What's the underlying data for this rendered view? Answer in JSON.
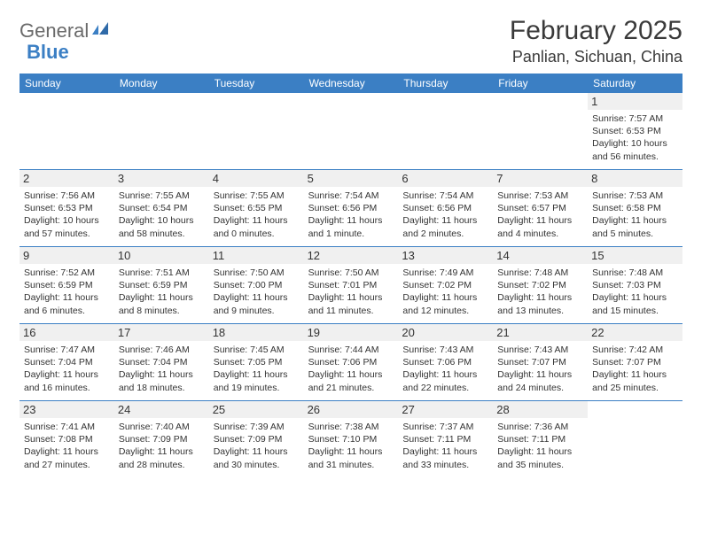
{
  "brand": {
    "name_part1": "General",
    "name_part2": "Blue"
  },
  "header": {
    "month_title": "February 2025",
    "location": "Panlian, Sichuan, China"
  },
  "colors": {
    "accent": "#3b7fc4",
    "row_alt": "#f0f0f0",
    "text": "#333333",
    "logo_gray": "#6a6a6a"
  },
  "calendar": {
    "dow": [
      "Sunday",
      "Monday",
      "Tuesday",
      "Wednesday",
      "Thursday",
      "Friday",
      "Saturday"
    ],
    "weeks": [
      [
        null,
        null,
        null,
        null,
        null,
        null,
        {
          "d": "1",
          "sunrise": "Sunrise: 7:57 AM",
          "sunset": "Sunset: 6:53 PM",
          "daylight": "Daylight: 10 hours and 56 minutes."
        }
      ],
      [
        {
          "d": "2",
          "sunrise": "Sunrise: 7:56 AM",
          "sunset": "Sunset: 6:53 PM",
          "daylight": "Daylight: 10 hours and 57 minutes."
        },
        {
          "d": "3",
          "sunrise": "Sunrise: 7:55 AM",
          "sunset": "Sunset: 6:54 PM",
          "daylight": "Daylight: 10 hours and 58 minutes."
        },
        {
          "d": "4",
          "sunrise": "Sunrise: 7:55 AM",
          "sunset": "Sunset: 6:55 PM",
          "daylight": "Daylight: 11 hours and 0 minutes."
        },
        {
          "d": "5",
          "sunrise": "Sunrise: 7:54 AM",
          "sunset": "Sunset: 6:56 PM",
          "daylight": "Daylight: 11 hours and 1 minute."
        },
        {
          "d": "6",
          "sunrise": "Sunrise: 7:54 AM",
          "sunset": "Sunset: 6:56 PM",
          "daylight": "Daylight: 11 hours and 2 minutes."
        },
        {
          "d": "7",
          "sunrise": "Sunrise: 7:53 AM",
          "sunset": "Sunset: 6:57 PM",
          "daylight": "Daylight: 11 hours and 4 minutes."
        },
        {
          "d": "8",
          "sunrise": "Sunrise: 7:53 AM",
          "sunset": "Sunset: 6:58 PM",
          "daylight": "Daylight: 11 hours and 5 minutes."
        }
      ],
      [
        {
          "d": "9",
          "sunrise": "Sunrise: 7:52 AM",
          "sunset": "Sunset: 6:59 PM",
          "daylight": "Daylight: 11 hours and 6 minutes."
        },
        {
          "d": "10",
          "sunrise": "Sunrise: 7:51 AM",
          "sunset": "Sunset: 6:59 PM",
          "daylight": "Daylight: 11 hours and 8 minutes."
        },
        {
          "d": "11",
          "sunrise": "Sunrise: 7:50 AM",
          "sunset": "Sunset: 7:00 PM",
          "daylight": "Daylight: 11 hours and 9 minutes."
        },
        {
          "d": "12",
          "sunrise": "Sunrise: 7:50 AM",
          "sunset": "Sunset: 7:01 PM",
          "daylight": "Daylight: 11 hours and 11 minutes."
        },
        {
          "d": "13",
          "sunrise": "Sunrise: 7:49 AM",
          "sunset": "Sunset: 7:02 PM",
          "daylight": "Daylight: 11 hours and 12 minutes."
        },
        {
          "d": "14",
          "sunrise": "Sunrise: 7:48 AM",
          "sunset": "Sunset: 7:02 PM",
          "daylight": "Daylight: 11 hours and 13 minutes."
        },
        {
          "d": "15",
          "sunrise": "Sunrise: 7:48 AM",
          "sunset": "Sunset: 7:03 PM",
          "daylight": "Daylight: 11 hours and 15 minutes."
        }
      ],
      [
        {
          "d": "16",
          "sunrise": "Sunrise: 7:47 AM",
          "sunset": "Sunset: 7:04 PM",
          "daylight": "Daylight: 11 hours and 16 minutes."
        },
        {
          "d": "17",
          "sunrise": "Sunrise: 7:46 AM",
          "sunset": "Sunset: 7:04 PM",
          "daylight": "Daylight: 11 hours and 18 minutes."
        },
        {
          "d": "18",
          "sunrise": "Sunrise: 7:45 AM",
          "sunset": "Sunset: 7:05 PM",
          "daylight": "Daylight: 11 hours and 19 minutes."
        },
        {
          "d": "19",
          "sunrise": "Sunrise: 7:44 AM",
          "sunset": "Sunset: 7:06 PM",
          "daylight": "Daylight: 11 hours and 21 minutes."
        },
        {
          "d": "20",
          "sunrise": "Sunrise: 7:43 AM",
          "sunset": "Sunset: 7:06 PM",
          "daylight": "Daylight: 11 hours and 22 minutes."
        },
        {
          "d": "21",
          "sunrise": "Sunrise: 7:43 AM",
          "sunset": "Sunset: 7:07 PM",
          "daylight": "Daylight: 11 hours and 24 minutes."
        },
        {
          "d": "22",
          "sunrise": "Sunrise: 7:42 AM",
          "sunset": "Sunset: 7:07 PM",
          "daylight": "Daylight: 11 hours and 25 minutes."
        }
      ],
      [
        {
          "d": "23",
          "sunrise": "Sunrise: 7:41 AM",
          "sunset": "Sunset: 7:08 PM",
          "daylight": "Daylight: 11 hours and 27 minutes."
        },
        {
          "d": "24",
          "sunrise": "Sunrise: 7:40 AM",
          "sunset": "Sunset: 7:09 PM",
          "daylight": "Daylight: 11 hours and 28 minutes."
        },
        {
          "d": "25",
          "sunrise": "Sunrise: 7:39 AM",
          "sunset": "Sunset: 7:09 PM",
          "daylight": "Daylight: 11 hours and 30 minutes."
        },
        {
          "d": "26",
          "sunrise": "Sunrise: 7:38 AM",
          "sunset": "Sunset: 7:10 PM",
          "daylight": "Daylight: 11 hours and 31 minutes."
        },
        {
          "d": "27",
          "sunrise": "Sunrise: 7:37 AM",
          "sunset": "Sunset: 7:11 PM",
          "daylight": "Daylight: 11 hours and 33 minutes."
        },
        {
          "d": "28",
          "sunrise": "Sunrise: 7:36 AM",
          "sunset": "Sunset: 7:11 PM",
          "daylight": "Daylight: 11 hours and 35 minutes."
        },
        null
      ]
    ]
  }
}
